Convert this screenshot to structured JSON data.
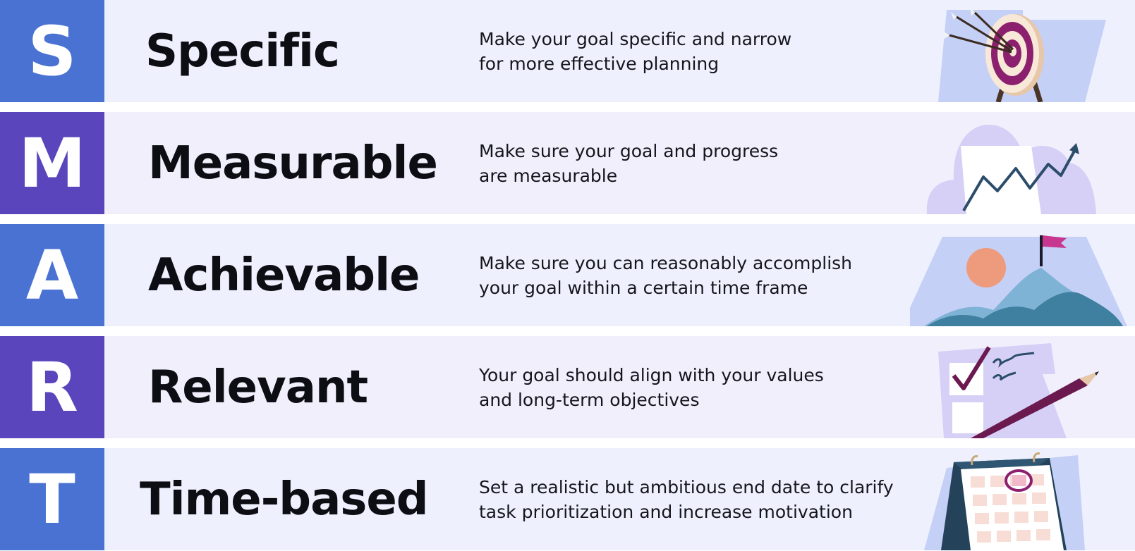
{
  "rows": [
    {
      "letter": "S",
      "word": "Specific",
      "line1": "Make your goal specific and narrow",
      "line2": "for more effective planning",
      "illustration": "target-icon",
      "color": "#4a72d3"
    },
    {
      "letter": "M",
      "word": "Measurable",
      "line1": "Make sure your goal and progress",
      "line2": "are measurable",
      "illustration": "chart-icon",
      "color": "#5a45bd"
    },
    {
      "letter": "A",
      "word": "Achievable",
      "line1": "Make sure you can reasonably accomplish",
      "line2": "your goal within a certain time frame",
      "illustration": "mountain-flag-icon",
      "color": "#4a72d3"
    },
    {
      "letter": "R",
      "word": "Relevant",
      "line1": "Your goal should align with your values",
      "line2": "and long-term objectives",
      "illustration": "checklist-pencil-icon",
      "color": "#5a45bd"
    },
    {
      "letter": "T",
      "word": "Time-based",
      "line1": "Set a realistic but ambitious end date to clarify",
      "line2": "task prioritization and increase motivation",
      "illustration": "calendar-icon",
      "color": "#4a72d3"
    }
  ]
}
